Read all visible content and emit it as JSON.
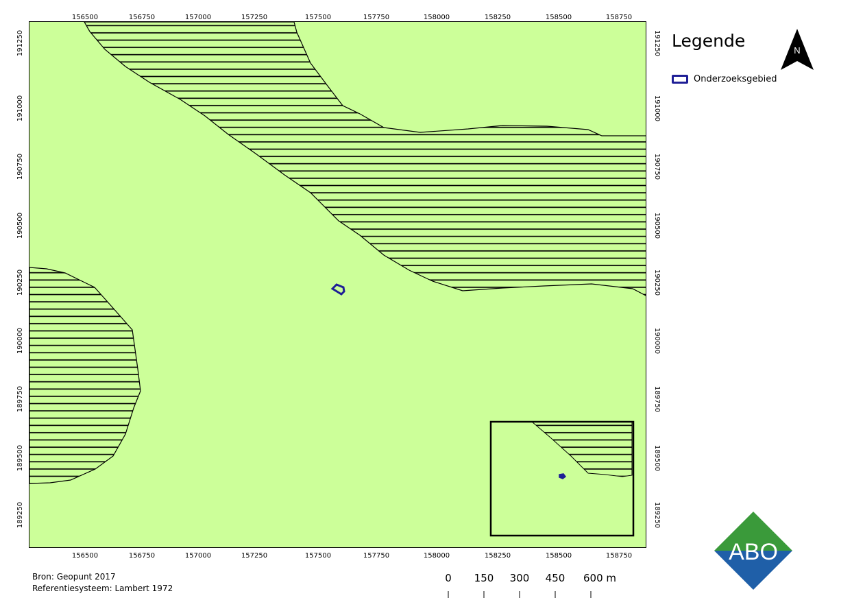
{
  "map": {
    "colors": {
      "land": "#ccff99",
      "hatch": "#000000",
      "outline": "#000000",
      "study_area": "#1e1e96"
    },
    "x_ticks": [
      "156500",
      "156750",
      "157000",
      "157250",
      "157500",
      "157750",
      "158000",
      "158250",
      "158500",
      "158750"
    ],
    "y_ticks": [
      "191250",
      "191000",
      "190750",
      "190500",
      "190250",
      "190000",
      "189750",
      "189500",
      "189250"
    ]
  },
  "legend": {
    "title": "Legende",
    "items": [
      {
        "label": "Onderzoeksgebied",
        "color": "#1e1e96"
      }
    ]
  },
  "north_arrow": {
    "label": "N"
  },
  "footer": {
    "source": "Bron: Geopunt 2017",
    "crs": "Referentiesysteem: Lambert 1972"
  },
  "scale_bar": {
    "labels": [
      "0",
      "150",
      "300",
      "450",
      "600 m"
    ]
  },
  "logo": {
    "text": "ABO",
    "top_color": "#3a9a3a",
    "bottom_color": "#1f5fa8"
  }
}
